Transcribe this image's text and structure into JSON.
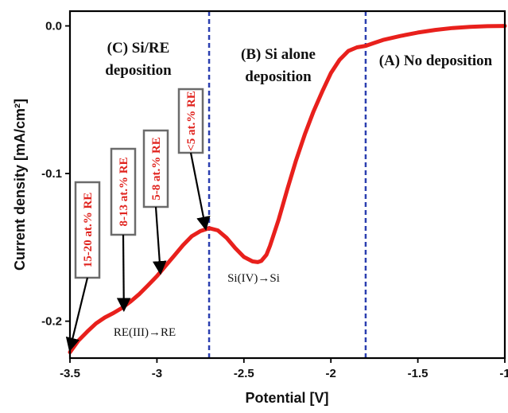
{
  "chart_data": {
    "type": "line",
    "xlabel": "Potential [V]",
    "ylabel": "Current density [mA/cm²]",
    "xlim": [
      -3.5,
      -1.0
    ],
    "ylim": [
      -0.225,
      0.01
    ],
    "x_ticks": [
      "-3.5",
      "-3",
      "-2.5",
      "-2",
      "-1.5",
      "-1"
    ],
    "x_tick_values": [
      -3.5,
      -3.0,
      -2.5,
      -2.0,
      -1.5,
      -1.0
    ],
    "y_ticks": [
      "0.0",
      "-0.1",
      "-0.2"
    ],
    "y_tick_values": [
      0.0,
      -0.1,
      -0.2
    ],
    "series": [
      {
        "color": "#e8201c",
        "x": [
          -3.5,
          -3.45,
          -3.4,
          -3.35,
          -3.3,
          -3.25,
          -3.2,
          -3.15,
          -3.1,
          -3.05,
          -3.0,
          -2.95,
          -2.9,
          -2.85,
          -2.8,
          -2.75,
          -2.7,
          -2.65,
          -2.6,
          -2.55,
          -2.5,
          -2.45,
          -2.42,
          -2.4,
          -2.37,
          -2.35,
          -2.3,
          -2.25,
          -2.2,
          -2.15,
          -2.1,
          -2.05,
          -2.0,
          -1.95,
          -1.9,
          -1.85,
          -1.8,
          -1.75,
          -1.7,
          -1.6,
          -1.5,
          -1.4,
          -1.3,
          -1.2,
          -1.1,
          -1.0
        ],
        "y": [
          -0.221,
          -0.213,
          -0.207,
          -0.2015,
          -0.1975,
          -0.1945,
          -0.191,
          -0.1865,
          -0.1815,
          -0.1755,
          -0.1695,
          -0.1625,
          -0.1555,
          -0.1485,
          -0.1425,
          -0.139,
          -0.137,
          -0.1385,
          -0.1435,
          -0.1505,
          -0.1565,
          -0.1595,
          -0.16,
          -0.1592,
          -0.155,
          -0.149,
          -0.131,
          -0.1105,
          -0.091,
          -0.0735,
          -0.058,
          -0.0445,
          -0.032,
          -0.023,
          -0.017,
          -0.0145,
          -0.0135,
          -0.0115,
          -0.0095,
          -0.0068,
          -0.0045,
          -0.0027,
          -0.0014,
          -0.0006,
          -0.0002,
          0.0
        ]
      }
    ],
    "vlines": [
      -2.7,
      -1.8
    ],
    "vline_color": "#2b3fb0",
    "grid": false
  },
  "regions": {
    "c_line1": "(C) Si/RE",
    "c_line2": "deposition",
    "b_line1": "(B) Si alone",
    "b_line2": "deposition",
    "a": "(A) No deposition"
  },
  "reactions": {
    "re": "RE(III)→RE",
    "si": "Si(IV)→Si"
  },
  "compositions": [
    {
      "label": "15-20 at.% RE",
      "x": -3.5,
      "y": -0.219
    },
    {
      "label": "8-13 at.% RE",
      "x": -3.19,
      "y": -0.192
    },
    {
      "label": "5-8 at.% RE",
      "x": -2.98,
      "y": -0.167
    },
    {
      "label": "<5 at.% RE",
      "x": -2.72,
      "y": -0.137
    }
  ]
}
